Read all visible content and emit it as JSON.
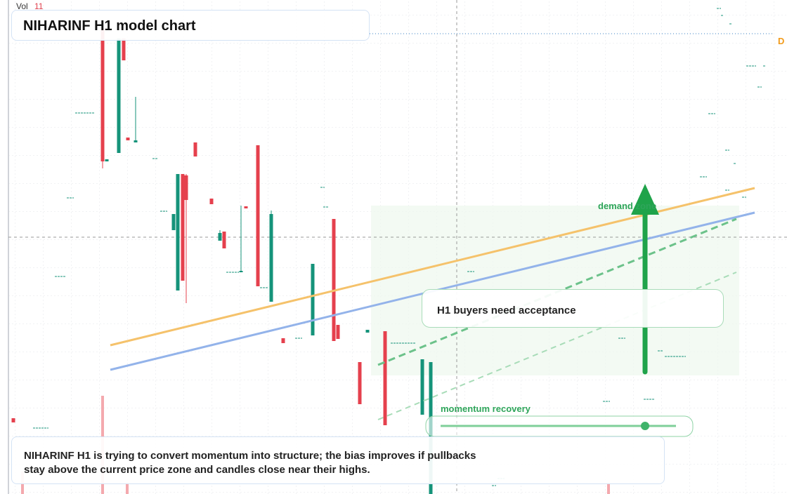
{
  "header": {
    "vol_label": "Vol",
    "vol_value": "11",
    "title": "NIHARINF H1 model chart",
    "edge_tag": "D"
  },
  "annotations": {
    "zone_label": "demand zone",
    "callout": "H1 buyers need acceptance",
    "slider_label": "momentum recovery"
  },
  "footer": {
    "lines": [
      "NIHARINF H1 is trying to convert momentum into structure; the bias improves if pullbacks",
      "stay above the current price zone and candles close near their highs."
    ]
  }
}
